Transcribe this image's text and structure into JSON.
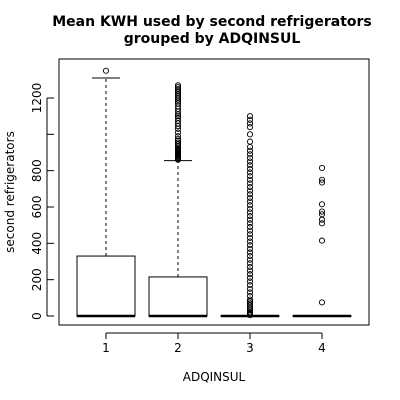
{
  "chart_data": {
    "type": "boxplot",
    "title": [
      "Mean KWH used by second refrigerators",
      "grouped by ADQINSUL"
    ],
    "xlabel": "ADQINSUL",
    "ylabel": "second refrigerators",
    "categories": [
      "1",
      "2",
      "3",
      "4"
    ],
    "y_ticks": [
      0,
      200,
      400,
      600,
      800,
      1200
    ],
    "ylim": [
      -50,
      1400
    ],
    "boxes": [
      {
        "category": "1",
        "min": 0,
        "q1": 0,
        "median": 0,
        "q3": 330,
        "max": 1310,
        "outliers": [
          1350
        ]
      },
      {
        "category": "2",
        "min": 0,
        "q1": 0,
        "median": 0,
        "q3": 215,
        "max": 855,
        "outliers": [
          860,
          865,
          870,
          875,
          880,
          885,
          890,
          895,
          900,
          905,
          910,
          915,
          920,
          925,
          935,
          945,
          955,
          965,
          975,
          990,
          1010,
          1030,
          1045,
          1060,
          1075,
          1090,
          1100,
          1110,
          1125,
          1140,
          1155,
          1170,
          1180,
          1190,
          1200,
          1210,
          1220,
          1230,
          1240,
          1250,
          1260,
          1270
        ]
      },
      {
        "category": "3",
        "min": 0,
        "q1": 0,
        "median": 0,
        "q3": 0,
        "max": 0,
        "outliers": [
          5,
          10,
          15,
          20,
          30,
          40,
          50,
          60,
          70,
          80,
          90,
          110,
          130,
          150,
          170,
          190,
          210,
          230,
          250,
          270,
          290,
          310,
          330,
          350,
          370,
          390,
          410,
          430,
          450,
          470,
          490,
          510,
          530,
          550,
          570,
          590,
          610,
          630,
          650,
          670,
          690,
          710,
          730,
          750,
          770,
          790,
          810,
          830,
          850,
          870,
          890,
          910,
          930,
          960,
          1000,
          1040,
          1060,
          1080,
          1100
        ]
      },
      {
        "category": "4",
        "min": 0,
        "q1": 0,
        "median": 0,
        "q3": 0,
        "max": 0,
        "outliers": [
          75,
          415,
          510,
          530,
          560,
          575,
          615,
          735,
          750,
          815
        ]
      }
    ],
    "grid": false,
    "legend": "none"
  }
}
